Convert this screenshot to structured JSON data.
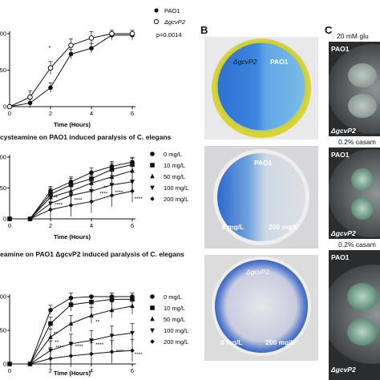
{
  "panel_labels": {
    "B": "B",
    "C": "C"
  },
  "chart_data": [
    {
      "type": "line",
      "title": "",
      "xlabel": "Time (Hours)",
      "ylabel": "",
      "x": [
        0,
        1,
        2,
        3,
        4,
        5,
        6
      ],
      "xlim": [
        0,
        6
      ],
      "ylim": [
        0,
        100
      ],
      "yticks": [
        0,
        50,
        100
      ],
      "xticks": [
        0,
        2,
        4,
        6
      ],
      "legend": "top-right",
      "series": [
        {
          "name": "PAO1",
          "marker": "filled-circle",
          "values": [
            0,
            5,
            26,
            72,
            80,
            98,
            98
          ]
        },
        {
          "name": "ΔgcvP2",
          "marker": "open-circle",
          "values": [
            0,
            13,
            53,
            84,
            94,
            100,
            100
          ]
        }
      ],
      "annotations": [
        "*",
        "p=0.0014"
      ]
    },
    {
      "type": "line",
      "title": "cysteamine on PAO1 induced paralysis of C. elegans",
      "xlabel": "Time (Hours)",
      "ylabel": "",
      "x": [
        0,
        1,
        2,
        3,
        4,
        5,
        6
      ],
      "xlim": [
        0,
        6
      ],
      "ylim": [
        0,
        100
      ],
      "yticks": [
        0,
        50,
        100
      ],
      "xticks": [
        0,
        2,
        4,
        6
      ],
      "legend": "right",
      "series": [
        {
          "name": "0 mg/L",
          "marker": "circle",
          "values": [
            0,
            0,
            45,
            60,
            75,
            85,
            92
          ]
        },
        {
          "name": "10 mg/L",
          "marker": "square",
          "values": [
            0,
            0,
            40,
            55,
            65,
            80,
            88
          ]
        },
        {
          "name": "50 mg/L",
          "marker": "triangle-up",
          "values": [
            0,
            0,
            35,
            45,
            58,
            68,
            78
          ]
        },
        {
          "name": "100 mg/L",
          "marker": "triangle-down",
          "values": [
            0,
            0,
            25,
            38,
            45,
            55,
            60
          ]
        },
        {
          "name": "200 mg/L",
          "marker": "diamond",
          "values": [
            0,
            0,
            15,
            22,
            28,
            38,
            45
          ]
        }
      ],
      "annotations": [
        "**",
        "****",
        "****",
        "**",
        "****",
        "****",
        "****"
      ]
    },
    {
      "type": "line",
      "title": "eamine on PAO1 ΔgcvP2 induced paralysis of C. elegans",
      "xlabel": "Time (Hours)",
      "ylabel": "",
      "x": [
        0,
        1,
        2,
        3,
        4,
        5,
        6
      ],
      "xlim": [
        0,
        6
      ],
      "ylim": [
        0,
        100
      ],
      "yticks": [
        0,
        50,
        100
      ],
      "xticks": [
        0,
        2,
        4,
        6
      ],
      "legend": "right",
      "series": [
        {
          "name": "0 mg/L",
          "marker": "circle",
          "values": [
            0,
            0,
            80,
            98,
            100,
            100,
            100
          ]
        },
        {
          "name": "10 mg/L",
          "marker": "square",
          "values": [
            0,
            0,
            60,
            88,
            92,
            96,
            96
          ]
        },
        {
          "name": "50 mg/L",
          "marker": "triangle-up",
          "values": [
            0,
            0,
            40,
            60,
            72,
            80,
            86
          ]
        },
        {
          "name": "100 mg/L",
          "marker": "triangle-down",
          "values": [
            0,
            0,
            20,
            30,
            35,
            42,
            46
          ]
        },
        {
          "name": "200 mg/L",
          "marker": "diamond",
          "values": [
            0,
            0,
            8,
            12,
            15,
            18,
            20
          ]
        }
      ],
      "annotations": [
        "**",
        "**",
        "**",
        "****",
        "****",
        "****",
        "****",
        "****"
      ]
    }
  ],
  "panel_b": {
    "plate1": {
      "left": "ΔgcvP2",
      "right": "PAO1"
    },
    "plate2": {
      "top": "PAO1",
      "left": "0 mg/L",
      "right": "200 mg/L"
    },
    "plate3": {
      "top": "ΔgcvP2",
      "left": "0 mg/L",
      "right": "200 mg/L"
    }
  },
  "panel_c": {
    "header": "20 mM glu",
    "plate1": {
      "top": "PAO1",
      "bottom": "ΔgcvP2"
    },
    "label2": "0.2% casam",
    "plate2": {
      "top": "PAO1",
      "bottom": "ΔgcvP2"
    },
    "label3": "0.2% casam",
    "plate3": {
      "top": "PAO1",
      "bottom": "ΔgcvP2"
    }
  }
}
